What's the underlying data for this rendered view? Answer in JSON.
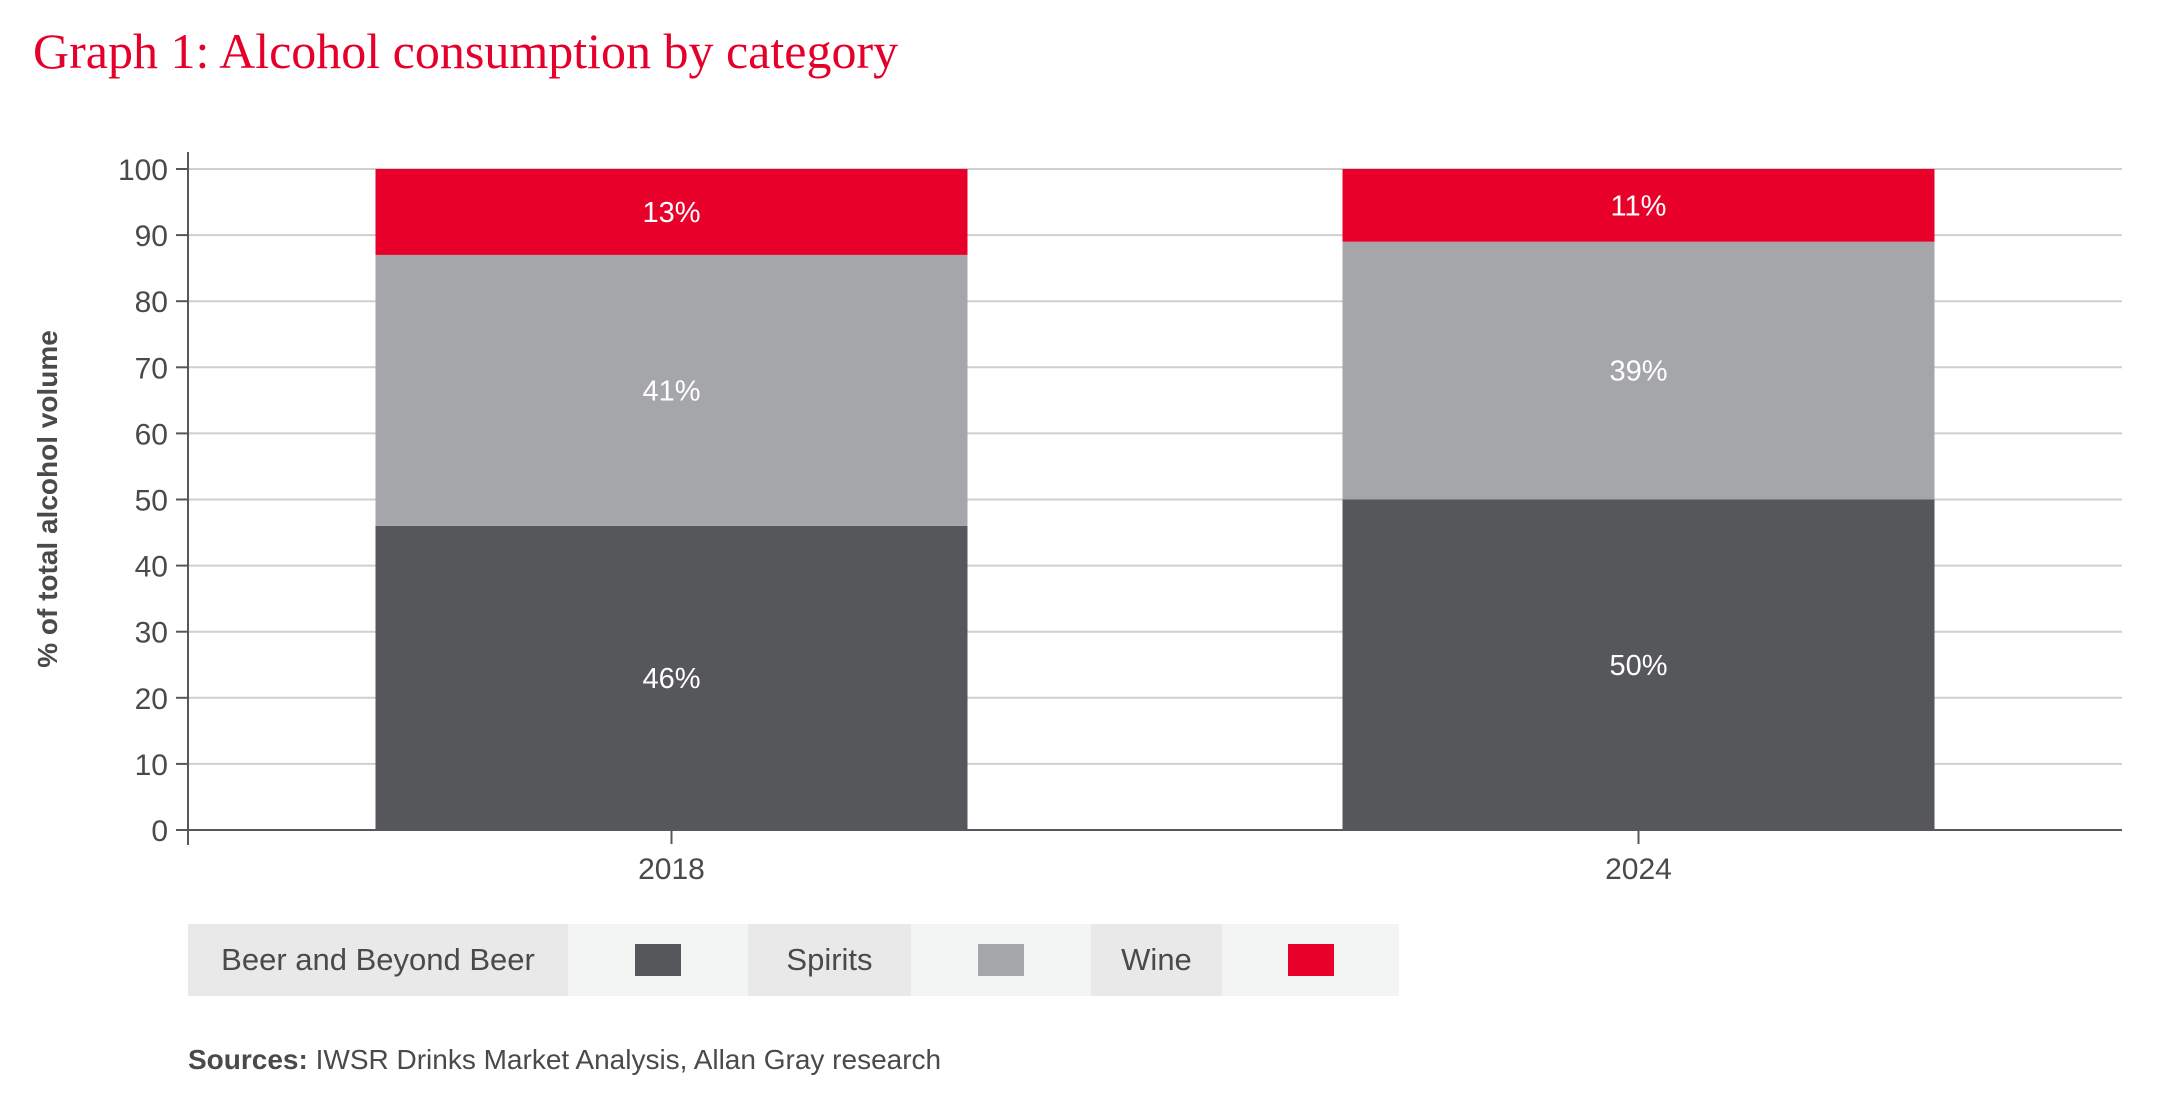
{
  "title": "Graph 1: Alcohol consumption by category",
  "chart_data": {
    "type": "bar",
    "stacked": true,
    "title": "Graph 1: Alcohol consumption by category",
    "xlabel": "",
    "ylabel": "% of total alcohol volume",
    "ylim": [
      0,
      100
    ],
    "yticks": [
      0,
      10,
      20,
      30,
      40,
      50,
      60,
      70,
      80,
      90,
      100
    ],
    "grid": true,
    "categories": [
      "2018",
      "2024"
    ],
    "series": [
      {
        "name": "Beer and Beyond Beer",
        "values": [
          46,
          50
        ],
        "labels": [
          "46%",
          "50%"
        ],
        "color": "#56575B"
      },
      {
        "name": "Spirits",
        "values": [
          41,
          39
        ],
        "labels": [
          "41%",
          "39%"
        ],
        "color": "#A5A6A9"
      },
      {
        "name": "Wine",
        "values": [
          13,
          11
        ],
        "labels": [
          "13%",
          "11%"
        ],
        "color": "#E8002A"
      }
    ],
    "legend_position": "bottom"
  },
  "sources": {
    "label": "Sources:",
    "text": " IWSR Drinks Market Analysis, Allan Gray research"
  }
}
